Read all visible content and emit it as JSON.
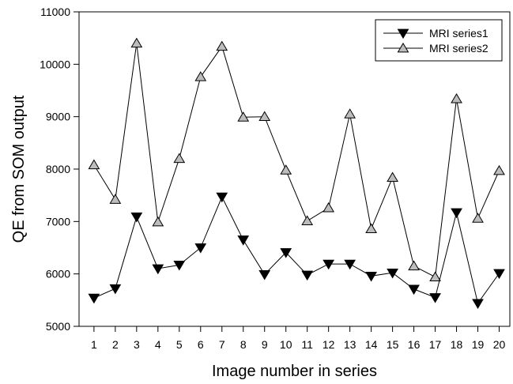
{
  "chart_data": {
    "type": "line",
    "title": "",
    "xlabel": "Image number in series",
    "ylabel": "QE from SOM output",
    "xlim": [
      0.3,
      20.5
    ],
    "ylim": [
      5000,
      11000
    ],
    "x": [
      1,
      2,
      3,
      4,
      5,
      6,
      7,
      8,
      9,
      10,
      11,
      12,
      13,
      14,
      15,
      16,
      17,
      18,
      19,
      20
    ],
    "x_tick_labels": [
      "1",
      "2",
      "3",
      "4",
      "5",
      "6",
      "7",
      "8",
      "9",
      "10",
      "11",
      "12",
      "13",
      "14",
      "15",
      "16",
      "17",
      "18",
      "19",
      "20"
    ],
    "y_ticks": [
      5000,
      6000,
      7000,
      8000,
      9000,
      10000,
      11000
    ],
    "y_tick_labels": [
      "5000",
      "6000",
      "7000",
      "8000",
      "9000",
      "10000",
      "11000"
    ],
    "grid": false,
    "legend_position": "top-right",
    "series": [
      {
        "name": "MRI series1",
        "marker": "filled-down-triangle",
        "color": "#000000",
        "values": [
          5540,
          5720,
          7090,
          6100,
          6170,
          6500,
          7470,
          6650,
          5990,
          6410,
          5980,
          6190,
          6190,
          5960,
          6020,
          5710,
          5550,
          7170,
          5440,
          6010
        ]
      },
      {
        "name": "MRI series2",
        "marker": "open-up-triangle",
        "color": "#000000",
        "marker_fill": "#bdbdbd",
        "values": [
          8080,
          7420,
          10400,
          6990,
          8200,
          9760,
          10340,
          8990,
          9000,
          7980,
          7010,
          7260,
          9050,
          6860,
          7840,
          6150,
          5940,
          9340,
          7060,
          7970
        ]
      }
    ]
  }
}
